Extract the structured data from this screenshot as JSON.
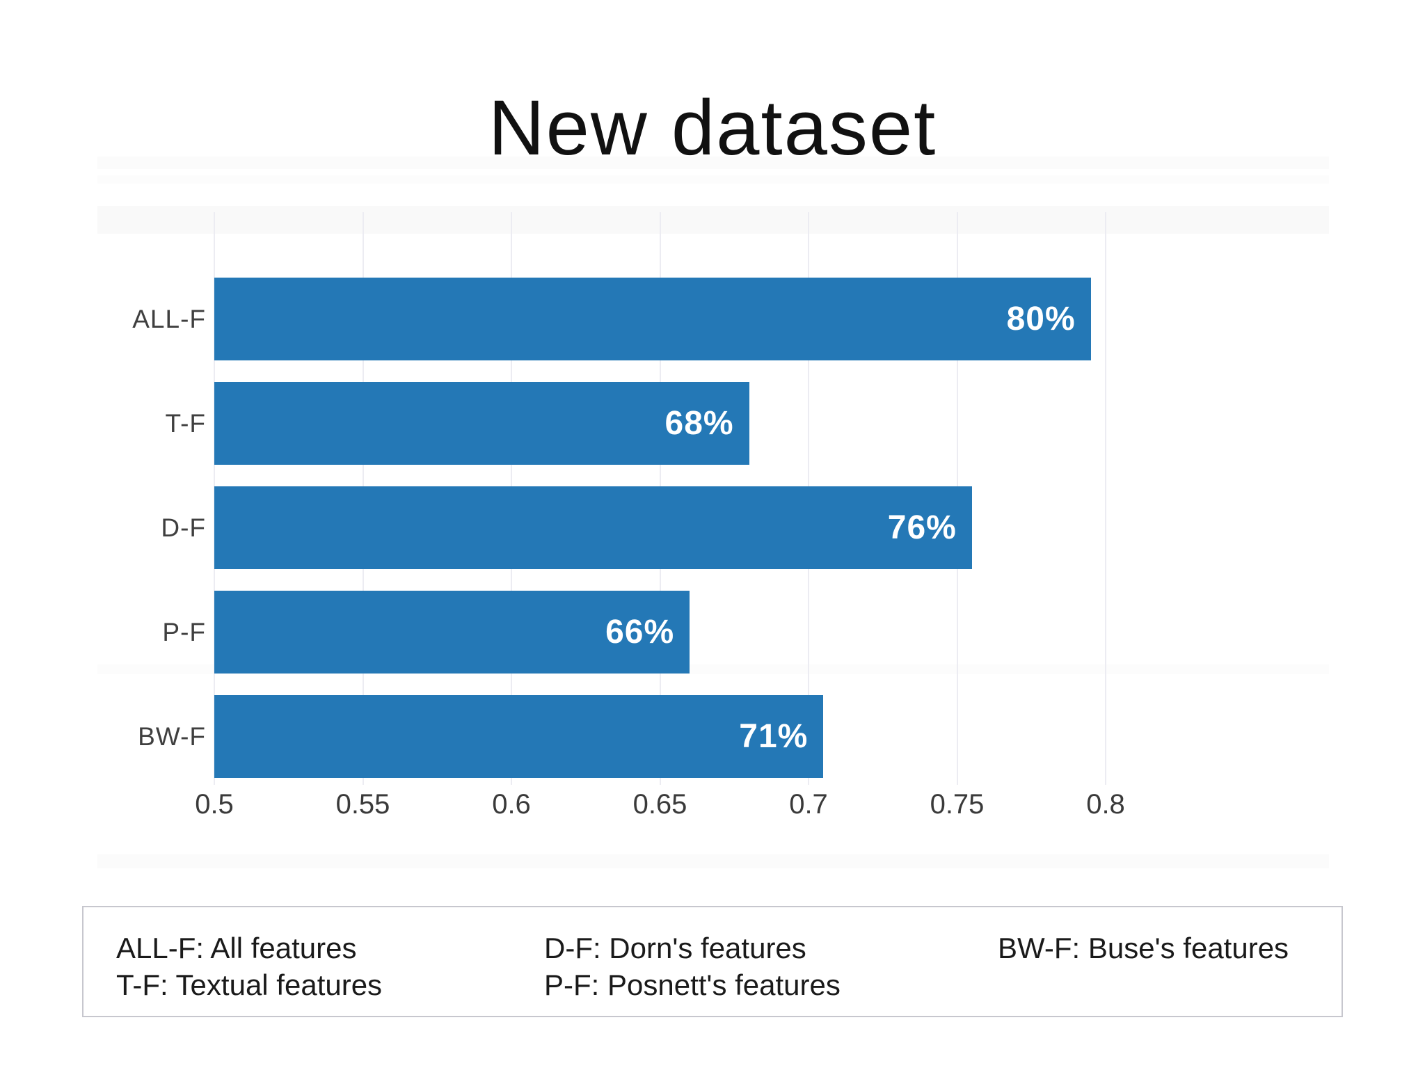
{
  "title": "New dataset",
  "chart_data": {
    "type": "bar",
    "orientation": "horizontal",
    "title": "New dataset",
    "categories": [
      "ALL-F",
      "T-F",
      "D-F",
      "P-F",
      "BW-F"
    ],
    "values": [
      0.795,
      0.68,
      0.755,
      0.66,
      0.705
    ],
    "bar_labels": [
      "80%",
      "68%",
      "76%",
      "66%",
      "71%"
    ],
    "xlim": [
      0.5,
      0.8
    ],
    "xticks": [
      0.5,
      0.55,
      0.6,
      0.65,
      0.7,
      0.75,
      0.8
    ],
    "xtick_labels": [
      "0.5",
      "0.55",
      "0.6",
      "0.65",
      "0.7",
      "0.75",
      "0.8"
    ],
    "grid": "vertical",
    "legend_position": "bottom",
    "bar_color": "#2478b6",
    "bar_label_color": "#ffffff",
    "axis_text_color": "#3a3a3a"
  },
  "legend": {
    "columns": [
      [
        "ALL-F: All features",
        "T-F: Textual features"
      ],
      [
        "D-F: Dorn's features",
        "P-F: Posnett's features"
      ],
      [
        "BW-F: Buse's features"
      ]
    ]
  }
}
